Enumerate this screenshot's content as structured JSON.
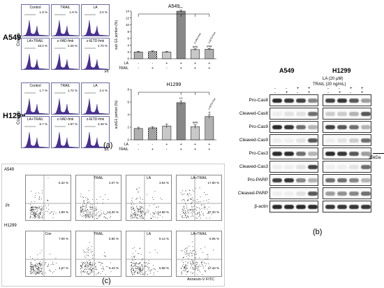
{
  "panel_a": {
    "rows": [
      {
        "label": "A549",
        "cells": [
          {
            "name": "Control",
            "pct": "1.9 %"
          },
          {
            "name": "TRAIL",
            "pct": "1.9 %"
          },
          {
            "name": "LA",
            "pct": "2.0 %"
          },
          {
            "name": "LA+TRAIL",
            "pct": "16.0 %"
          },
          {
            "name": "z-VAD-fmk",
            "pct": "2.25 %"
          },
          {
            "name": "z-IETD-fmk",
            "pct": "2.70 %"
          }
        ]
      },
      {
        "label": "H1299",
        "cells": [
          {
            "name": "Control",
            "pct": "1.7 %"
          },
          {
            "name": "TRAIL",
            "pct": "1.72 %"
          },
          {
            "name": "LA",
            "pct": "2.4 %"
          },
          {
            "name": "LA+TRAIL",
            "pct": "6.7 %"
          },
          {
            "name": "z-VAD-fmk",
            "pct": "1.97 %"
          },
          {
            "name": "z-IETD-fmk",
            "pct": "3.48 %"
          }
        ]
      }
    ],
    "counts_label": "Counts",
    "pi_label": "PI",
    "letter": "(a)"
  },
  "chart_data": [
    {
      "type": "bar",
      "title": "A549",
      "ylabel": "sub G1 portion (%)",
      "ylim": [
        0,
        14
      ],
      "yticks": [
        "0",
        "2",
        "4",
        "6",
        "8",
        "10",
        "12",
        "14"
      ],
      "values": [
        2.0,
        2.1,
        2.0,
        14.0,
        2.7,
        2.8
      ],
      "errors": [
        0.2,
        0.2,
        0.2,
        0.3,
        0.2,
        0.2
      ],
      "fills": [
        "#b0b0b0",
        "checker",
        "#c8c8c8",
        "#888888",
        "#c8c8c8",
        "#b0b0b0"
      ],
      "sig_labels": [
        "",
        "",
        "",
        "***",
        "###",
        "###"
      ],
      "bar_notes": [
        "",
        "",
        "",
        "",
        "z-VAD-fmk",
        "z-IETD-fmk"
      ],
      "LA_row": [
        "-",
        "-",
        "+",
        "+",
        "+",
        "+"
      ],
      "TRAIL_row": [
        "-",
        "+",
        "-",
        "+",
        "+",
        "+"
      ],
      "row_labels": [
        "LA",
        "TRAIL"
      ]
    },
    {
      "type": "bar",
      "title": "H1299",
      "ylabel": "subG1 portion (%)",
      "ylim": [
        0,
        8
      ],
      "yticks": [
        "0",
        "2",
        "4",
        "6",
        "8"
      ],
      "values": [
        1.8,
        1.9,
        2.2,
        5.9,
        2.1,
        3.7
      ],
      "errors": [
        0.2,
        0.2,
        0.3,
        0.3,
        0.3,
        0.3
      ],
      "fills": [
        "#b0b0b0",
        "checker",
        "#c8c8c8",
        "#888888",
        "#c8c8c8",
        "#b0b0b0"
      ],
      "sig_labels": [
        "",
        "",
        "",
        "***",
        "###",
        "#"
      ],
      "bar_notes": [
        "",
        "",
        "",
        "",
        "",
        "z-IETD-fmk"
      ],
      "LA_row": [
        "-",
        "-",
        "+",
        "+",
        "+",
        "+"
      ],
      "TRAIL_row": [
        "-",
        "+",
        "-",
        "+",
        "+",
        "+"
      ],
      "row_labels": [
        "LA",
        "TRAIL"
      ]
    }
  ],
  "panel_b": {
    "lines": [
      "A549",
      "H1299"
    ],
    "treat_LA": "LA (20 μM)",
    "treat_TRAIL": "TRAIL (20 ng/mL)",
    "LA_signs": [
      "-",
      "-",
      "+",
      "+"
    ],
    "TRAIL_signs": [
      "-",
      "+",
      "-",
      "+"
    ],
    "proteins": [
      "Pro-Cas8",
      "Cleaved-Cas8",
      "Pro-Cas9",
      "Cleaved-Cas9",
      "Pro-Cas3",
      "Cleaved-Cas3",
      "Pro-PARP",
      "Cleaved-PARP",
      "β-actin"
    ],
    "marker": "35kDa",
    "letter": "(b)"
  },
  "panel_c": {
    "rows": [
      {
        "label": "A549",
        "cells": [
          {
            "name": "-",
            "q1": "5.32 %",
            "q2": "1.89 %"
          },
          {
            "name": "TRAIL",
            "q1": "4.07 %",
            "q2": "13.30 %"
          },
          {
            "name": "LA",
            "q1": "3.94 %",
            "q2": "14.88 %"
          },
          {
            "name": "LA+TRAIL",
            "q1": "17.80 %",
            "q2": "37.30 %"
          }
        ]
      },
      {
        "label": "H1299",
        "cells": [
          {
            "name": "Con",
            "q1": "7.08 %",
            "q2": "4.97 %"
          },
          {
            "name": "TRAIL",
            "q1": "6.85 %",
            "q2": "5.43 %"
          },
          {
            "name": "LA",
            "q1": "8.14 %",
            "q2": "5.88 %"
          },
          {
            "name": "LA+TRAIL",
            "q1": "6.96 %",
            "q2": "17.43 %"
          }
        ]
      }
    ],
    "pi_label": "PI",
    "x_label": "Annexin-V FITC",
    "letter": "(c)"
  }
}
